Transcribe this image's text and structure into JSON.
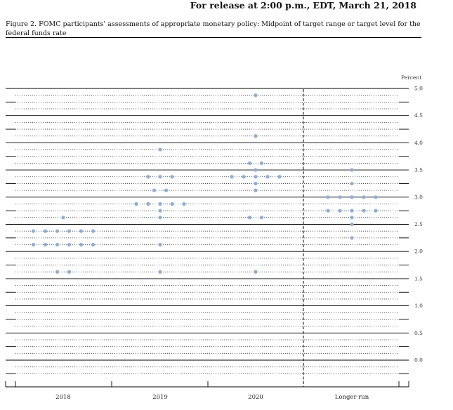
{
  "header": {
    "release": "For release at 2:00 p.m., EDT, March 21, 2018",
    "caption": "Figure 2. FOMC participants' assessments of appropriate monetary policy: Midpoint of target range or target level for the federal funds rate"
  },
  "chart_data": {
    "type": "scatter",
    "title": "Figure 2. FOMC participants' assessments of appropriate monetary policy: Midpoint of target range or target level for the federal funds rate",
    "ylabel": "Percent",
    "ylim": [
      -0.375,
      5.125
    ],
    "yticks": [
      "5.0",
      "4.5",
      "4.0",
      "3.5",
      "3.0",
      "2.5",
      "2.0",
      "1.5",
      "1.0",
      "0.5",
      "0.0"
    ],
    "categories": [
      "2018",
      "2019",
      "2020",
      "Longer run"
    ],
    "dot_color": "#8eaed6",
    "points": [
      {
        "category": "2018",
        "rates": [
          {
            "y": 2.625,
            "count": 1
          },
          {
            "y": 2.375,
            "count": 6
          },
          {
            "y": 2.125,
            "count": 6
          },
          {
            "y": 1.625,
            "count": 2
          }
        ]
      },
      {
        "category": "2019",
        "rates": [
          {
            "y": 3.875,
            "count": 1
          },
          {
            "y": 3.375,
            "count": 3
          },
          {
            "y": 3.125,
            "count": 2
          },
          {
            "y": 2.875,
            "count": 5
          },
          {
            "y": 2.75,
            "count": 1
          },
          {
            "y": 2.625,
            "count": 1
          },
          {
            "y": 2.125,
            "count": 1
          },
          {
            "y": 1.625,
            "count": 1
          }
        ]
      },
      {
        "category": "2020",
        "rates": [
          {
            "y": 4.875,
            "count": 1
          },
          {
            "y": 4.125,
            "count": 1
          },
          {
            "y": 3.625,
            "count": 2
          },
          {
            "y": 3.5,
            "count": 1
          },
          {
            "y": 3.375,
            "count": 5
          },
          {
            "y": 3.25,
            "count": 1
          },
          {
            "y": 3.125,
            "count": 1
          },
          {
            "y": 2.625,
            "count": 2
          },
          {
            "y": 1.625,
            "count": 1
          }
        ]
      },
      {
        "category": "Longer run",
        "rates": [
          {
            "y": 3.5,
            "count": 1
          },
          {
            "y": 3.25,
            "count": 1
          },
          {
            "y": 3.0,
            "count": 5
          },
          {
            "y": 2.75,
            "count": 5
          },
          {
            "y": 2.625,
            "count": 1
          },
          {
            "y": 2.5,
            "count": 1
          },
          {
            "y": 2.25,
            "count": 1
          }
        ]
      }
    ]
  }
}
